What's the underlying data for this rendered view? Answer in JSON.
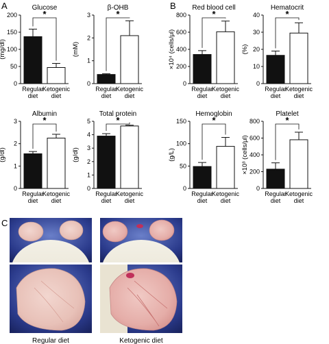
{
  "panel_labels": {
    "a": "A",
    "b": "B",
    "c": "C"
  },
  "category_labels": {
    "regular_line1": "Regular",
    "regular_line2": "diet",
    "keto_line1": "Ketogenic",
    "keto_line2": "diet"
  },
  "significance_marker": "*",
  "colors": {
    "regular_bar": "#111111",
    "keto_bar": "#ffffff",
    "stroke": "#111111"
  },
  "chart_data": [
    {
      "type": "bar",
      "title": "Glucose",
      "ylabel": "(mg/dl)",
      "ylim": [
        0,
        200
      ],
      "yticks": [
        "0",
        "50",
        "100",
        "150",
        "200"
      ],
      "ytick_values": [
        0,
        50,
        100,
        150,
        200
      ],
      "categories": [
        "Regular diet",
        "Ketogenic diet"
      ],
      "values": [
        137,
        47
      ],
      "errors": [
        22,
        12
      ],
      "significant": true
    },
    {
      "type": "bar",
      "title": "β-OHB",
      "ylabel": "(mM)",
      "ylim": [
        0,
        3
      ],
      "yticks": [
        "0",
        "1",
        "2",
        "3"
      ],
      "ytick_values": [
        0,
        1,
        2,
        3
      ],
      "categories": [
        "Regular diet",
        "Ketogenic diet"
      ],
      "values": [
        0.4,
        2.1
      ],
      "errors": [
        0.03,
        0.65
      ],
      "significant": true
    },
    {
      "type": "bar",
      "title": "Red blood cell",
      "ylabel": "×10⁴ (cells/μl)",
      "ylim": [
        0,
        800
      ],
      "yticks": [
        "0",
        "200",
        "400",
        "600",
        "800"
      ],
      "ytick_values": [
        0,
        200,
        400,
        600,
        800
      ],
      "categories": [
        "Regular diet",
        "Ketogenic diet"
      ],
      "values": [
        340,
        605
      ],
      "errors": [
        45,
        125
      ],
      "significant": true
    },
    {
      "type": "bar",
      "title": "Hematocrit",
      "ylabel": "(%)",
      "ylim": [
        0,
        40
      ],
      "yticks": [
        "0",
        "10",
        "20",
        "30",
        "40"
      ],
      "ytick_values": [
        0,
        10,
        20,
        30,
        40
      ],
      "categories": [
        "Regular diet",
        "Ketogenic diet"
      ],
      "values": [
        16.5,
        29.5
      ],
      "errors": [
        2.5,
        6
      ],
      "significant": true
    },
    {
      "type": "bar",
      "title": "Albumin",
      "ylabel": "(g/dl)",
      "ylim": [
        0,
        3
      ],
      "yticks": [
        "0",
        "1",
        "2",
        "3"
      ],
      "ytick_values": [
        0,
        1,
        2,
        3
      ],
      "categories": [
        "Regular diet",
        "Ketogenic diet"
      ],
      "values": [
        1.55,
        2.25
      ],
      "errors": [
        0.1,
        0.17
      ],
      "significant": true
    },
    {
      "type": "bar",
      "title": "Total protein",
      "ylabel": "(g/dl)",
      "ylim": [
        0,
        5
      ],
      "yticks": [
        "0",
        "1",
        "2",
        "3",
        "4",
        "5"
      ],
      "ytick_values": [
        0,
        1,
        2,
        3,
        4,
        5
      ],
      "categories": [
        "Regular diet",
        "Ketogenic diet"
      ],
      "values": [
        3.9,
        4.65
      ],
      "errors": [
        0.18,
        0.06
      ],
      "significant": true
    },
    {
      "type": "bar",
      "title": "Hemoglobin",
      "ylabel": "(g/L)",
      "ylim": [
        0,
        150
      ],
      "yticks": [
        "0",
        "50",
        "100",
        "150"
      ],
      "ytick_values": [
        0,
        50,
        100,
        150
      ],
      "categories": [
        "Regular diet",
        "Ketogenic diet"
      ],
      "values": [
        49,
        94
      ],
      "errors": [
        9,
        20
      ],
      "significant": true
    },
    {
      "type": "bar",
      "title": "Platelet",
      "ylabel": "×10³ (cells/μl)",
      "ylim": [
        0,
        800
      ],
      "yticks": [
        "0",
        "200",
        "400",
        "600",
        "800"
      ],
      "ytick_values": [
        0,
        200,
        400,
        600,
        800
      ],
      "categories": [
        "Regular diet",
        "Ketogenic diet"
      ],
      "values": [
        230,
        580
      ],
      "errors": [
        75,
        90
      ],
      "significant": true
    }
  ],
  "photos": {
    "caption_regular": "Regular diet",
    "caption_ketogenic": "Ketogenic diet"
  }
}
